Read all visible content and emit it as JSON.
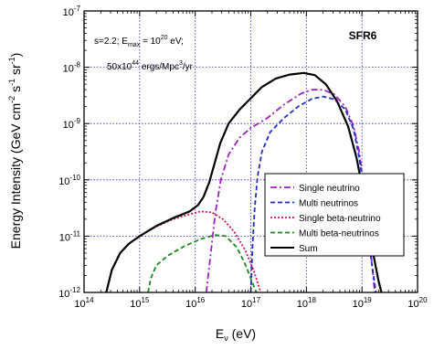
{
  "chart_data": {
    "type": "line",
    "title": "SFR6",
    "annotation": {
      "line1_prefix": "s=2.2;  E",
      "line1_sub": "max",
      "line1_mid": " = 10",
      "line1_sup": "20",
      "line1_suffix": " eV;",
      "line2_prefix": "50x10",
      "line2_sup": "44",
      "line2_mid": " ergs/Mpc",
      "line2_sup2": "3",
      "line2_suffix": "/yr"
    },
    "xlabel": {
      "main": "E",
      "sub": "ν",
      "unit": " (eV)"
    },
    "ylabel": {
      "p1": "Energy Intensity (GeV cm",
      "s1": "-2",
      "p2": " s",
      "s2": "-1",
      "p3": " sr",
      "s3": "-1",
      "p4": ")"
    },
    "xscale": "log",
    "yscale": "log",
    "xlim_exp": [
      14,
      20
    ],
    "ylim_exp": [
      -12,
      -7
    ],
    "x_ticks": [
      {
        "exp": 14,
        "base": "10",
        "sup": "14"
      },
      {
        "exp": 15,
        "base": "10",
        "sup": "15"
      },
      {
        "exp": 16,
        "base": "10",
        "sup": "16"
      },
      {
        "exp": 17,
        "base": "10",
        "sup": "17"
      },
      {
        "exp": 18,
        "base": "10",
        "sup": "18"
      },
      {
        "exp": 19,
        "base": "10",
        "sup": "19"
      },
      {
        "exp": 20,
        "base": "10",
        "sup": "20"
      }
    ],
    "y_ticks": [
      {
        "exp": -12,
        "base": "10",
        "sup": "-12"
      },
      {
        "exp": -11,
        "base": "10",
        "sup": "-11"
      },
      {
        "exp": -10,
        "base": "10",
        "sup": "-10"
      },
      {
        "exp": -9,
        "base": "10",
        "sup": "-9"
      },
      {
        "exp": -8,
        "base": "10",
        "sup": "-8"
      },
      {
        "exp": -7,
        "base": "10",
        "sup": "-7"
      }
    ],
    "grid": true,
    "legend_position": "lower-right",
    "series": [
      {
        "name": "Single neutrino",
        "color": "#a020c0",
        "dash": "dashdot",
        "points": [
          [
            16.2,
            -12.0
          ],
          [
            16.28,
            -11.3
          ],
          [
            16.36,
            -10.6
          ],
          [
            16.46,
            -10.0
          ],
          [
            16.6,
            -9.55
          ],
          [
            16.8,
            -9.25
          ],
          [
            17.0,
            -9.08
          ],
          [
            17.3,
            -8.9
          ],
          [
            17.6,
            -8.66
          ],
          [
            17.9,
            -8.47
          ],
          [
            18.1,
            -8.4
          ],
          [
            18.3,
            -8.4
          ],
          [
            18.5,
            -8.48
          ],
          [
            18.7,
            -8.7
          ],
          [
            18.85,
            -9.05
          ],
          [
            18.95,
            -9.5
          ],
          [
            19.05,
            -10.2
          ],
          [
            19.15,
            -11.2
          ],
          [
            19.23,
            -12.0
          ]
        ]
      },
      {
        "name": "Multi neutrinos",
        "color": "#1e2fc8",
        "dash": "dash",
        "points": [
          [
            17.0,
            -12.0
          ],
          [
            17.03,
            -11.2
          ],
          [
            17.07,
            -10.5
          ],
          [
            17.12,
            -9.95
          ],
          [
            17.2,
            -9.5
          ],
          [
            17.35,
            -9.15
          ],
          [
            17.6,
            -8.9
          ],
          [
            17.85,
            -8.7
          ],
          [
            18.1,
            -8.56
          ],
          [
            18.3,
            -8.52
          ],
          [
            18.5,
            -8.57
          ],
          [
            18.7,
            -8.75
          ],
          [
            18.85,
            -9.1
          ],
          [
            18.95,
            -9.6
          ],
          [
            19.05,
            -10.3
          ],
          [
            19.15,
            -11.3
          ],
          [
            19.25,
            -12.0
          ]
        ]
      },
      {
        "name": "Single beta-neutrino",
        "color": "#d01050",
        "dash": "dot",
        "points": [
          [
            14.4,
            -12.0
          ],
          [
            14.5,
            -11.6
          ],
          [
            14.65,
            -11.3
          ],
          [
            14.8,
            -11.14
          ],
          [
            15.0,
            -11.0
          ],
          [
            15.3,
            -10.83
          ],
          [
            15.6,
            -10.7
          ],
          [
            15.9,
            -10.61
          ],
          [
            16.1,
            -10.56
          ],
          [
            16.3,
            -10.58
          ],
          [
            16.5,
            -10.7
          ],
          [
            16.7,
            -10.92
          ],
          [
            16.9,
            -11.25
          ],
          [
            17.05,
            -11.6
          ],
          [
            17.18,
            -12.0
          ]
        ]
      },
      {
        "name": "Multi beta-neutrinos",
        "color": "#1a8a1a",
        "dash": "dash",
        "points": [
          [
            15.15,
            -12.0
          ],
          [
            15.2,
            -11.75
          ],
          [
            15.3,
            -11.52
          ],
          [
            15.5,
            -11.35
          ],
          [
            15.8,
            -11.18
          ],
          [
            16.1,
            -11.05
          ],
          [
            16.35,
            -10.98
          ],
          [
            16.55,
            -11.0
          ],
          [
            16.75,
            -11.2
          ],
          [
            16.9,
            -11.5
          ],
          [
            17.02,
            -11.8
          ],
          [
            17.1,
            -12.0
          ]
        ]
      },
      {
        "name": "Sum",
        "color": "#000000",
        "dash": "solid",
        "points": [
          [
            14.4,
            -12.0
          ],
          [
            14.5,
            -11.6
          ],
          [
            14.65,
            -11.3
          ],
          [
            14.8,
            -11.14
          ],
          [
            15.0,
            -11.0
          ],
          [
            15.3,
            -10.82
          ],
          [
            15.6,
            -10.68
          ],
          [
            15.9,
            -10.56
          ],
          [
            16.05,
            -10.45
          ],
          [
            16.15,
            -10.3
          ],
          [
            16.25,
            -10.05
          ],
          [
            16.35,
            -9.7
          ],
          [
            16.45,
            -9.35
          ],
          [
            16.6,
            -9.0
          ],
          [
            16.8,
            -8.75
          ],
          [
            17.0,
            -8.55
          ],
          [
            17.2,
            -8.35
          ],
          [
            17.45,
            -8.2
          ],
          [
            17.7,
            -8.13
          ],
          [
            17.95,
            -8.1
          ],
          [
            18.15,
            -8.14
          ],
          [
            18.35,
            -8.3
          ],
          [
            18.55,
            -8.6
          ],
          [
            18.75,
            -9.05
          ],
          [
            18.9,
            -9.6
          ],
          [
            19.0,
            -10.1
          ],
          [
            19.1,
            -10.7
          ],
          [
            19.2,
            -11.3
          ],
          [
            19.3,
            -11.8
          ],
          [
            19.35,
            -12.0
          ]
        ]
      }
    ]
  }
}
